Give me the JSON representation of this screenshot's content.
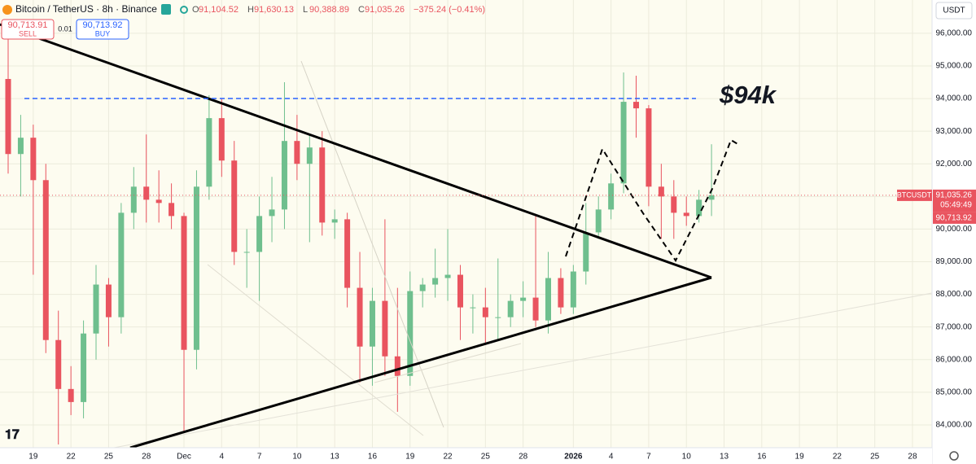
{
  "header": {
    "symbol": "Bitcoin / TetherUS · 8h · Binance",
    "ohlc": [
      {
        "label": "O",
        "value": "91,104.52"
      },
      {
        "label": "H",
        "value": "91,630.13"
      },
      {
        "label": "L",
        "value": "90,388.89"
      },
      {
        "label": "C",
        "value": "91,035.26"
      }
    ],
    "change": "−375.24 (−0.41%)"
  },
  "trade": {
    "sell_price": "90,713.91",
    "sell": "SELL",
    "spread": "0.01",
    "buy_price": "90,713.92",
    "buy": "BUY"
  },
  "axis_labels": {
    "currency": "USDT",
    "ticker": "BTCUSDT",
    "last_price": "91,035.26",
    "countdown": "05:49:49",
    "bid_price": "90,713.92"
  },
  "chart_data": {
    "type": "candlestick",
    "annotation": "$94k",
    "categories": [
      null,
      null,
      "19",
      null,
      null,
      "22",
      null,
      null,
      "25",
      null,
      null,
      "28",
      null,
      null,
      "Dec",
      null,
      null,
      "4",
      null,
      null,
      "7",
      null,
      null,
      "10",
      null,
      null,
      "13",
      null,
      null,
      "16",
      null,
      null,
      "19",
      null,
      null,
      "22",
      null,
      null,
      "25",
      null,
      null,
      "28",
      null,
      null,
      null,
      "2026",
      null,
      null,
      "4",
      null,
      null,
      "7",
      null,
      null,
      "10",
      null,
      null,
      "13",
      null,
      null,
      "16",
      null,
      null,
      "19",
      null,
      null,
      "22",
      null,
      null,
      "25",
      null,
      null,
      "28",
      null
    ],
    "open": [
      94600,
      92300,
      92800,
      91500,
      86600,
      85100,
      84700,
      86800,
      88300,
      87300,
      90500,
      91300,
      90900,
      90800,
      90400,
      86300,
      91300,
      93400,
      92100,
      89300,
      89300,
      90400,
      90600,
      92700,
      92000,
      92500,
      90200,
      90300,
      88200,
      86400,
      87800,
      86100,
      85500,
      88100,
      88300,
      88500,
      88600,
      87600,
      87600,
      87300,
      87300,
      87800,
      87900,
      87200,
      88500,
      87600,
      88700,
      89900,
      90600,
      91400,
      93900,
      93700,
      91300,
      91000,
      90500,
      90400,
      90900,
      null,
      null,
      null,
      null,
      null,
      null,
      null,
      null,
      null,
      null,
      null,
      null,
      null,
      null,
      null,
      null,
      null
    ],
    "high": [
      96000,
      93500,
      93200,
      92000,
      87500,
      85800,
      87200,
      88900,
      88500,
      90800,
      91900,
      92900,
      91800,
      91400,
      90500,
      91800,
      94100,
      94000,
      92700,
      90000,
      91000,
      91600,
      94500,
      93500,
      92900,
      93000,
      90600,
      90500,
      89300,
      88200,
      90300,
      88200,
      88700,
      88500,
      89400,
      90000,
      88900,
      88000,
      88200,
      89100,
      88000,
      88400,
      90400,
      89300,
      88800,
      88900,
      90800,
      91000,
      91700,
      94800,
      94700,
      93800,
      92000,
      91500,
      91000,
      91200,
      92600,
      null,
      null,
      null,
      null,
      null,
      null,
      null,
      null,
      null,
      null,
      null,
      null,
      null,
      null,
      null,
      null,
      null
    ],
    "low": [
      91700,
      91000,
      88600,
      86200,
      83400,
      84300,
      84200,
      86000,
      86400,
      86800,
      90000,
      90200,
      90200,
      90000,
      83800,
      85700,
      90900,
      91600,
      88900,
      88200,
      87800,
      89600,
      90000,
      91500,
      89600,
      89800,
      89700,
      87600,
      85300,
      85200,
      85500,
      84400,
      85200,
      87600,
      87900,
      87800,
      86600,
      86800,
      86500,
      86600,
      87000,
      87300,
      87000,
      86800,
      87400,
      87400,
      88300,
      89700,
      90300,
      91100,
      92800,
      90700,
      89700,
      89700,
      90100,
      90200,
      90400,
      null,
      null,
      null,
      null,
      null,
      null,
      null,
      null,
      null,
      null,
      null,
      null,
      null,
      null,
      null,
      null,
      null
    ],
    "close": [
      92300,
      92800,
      91500,
      86600,
      85100,
      84700,
      86800,
      88300,
      87300,
      90500,
      91300,
      90900,
      90800,
      90400,
      86300,
      91300,
      93400,
      92100,
      89300,
      89300,
      90400,
      90600,
      92700,
      92000,
      92500,
      90200,
      90300,
      88200,
      86400,
      87800,
      86100,
      85500,
      88100,
      88300,
      88500,
      88600,
      87600,
      87600,
      87300,
      87300,
      87800,
      87900,
      87200,
      88500,
      87600,
      88700,
      89900,
      90600,
      91400,
      93900,
      93700,
      91300,
      91000,
      90500,
      90400,
      90900,
      91035.26,
      null,
      null,
      null,
      null,
      null,
      null,
      null,
      null,
      null,
      null,
      null,
      null,
      null,
      null,
      null,
      null,
      null
    ],
    "up_color": "#6fbf8e",
    "down_color": "#e9545f",
    "ylim": [
      83300,
      97020
    ],
    "yticks": [
      {
        "value": 84000,
        "label": "84,000.00"
      },
      {
        "value": 85000,
        "label": "85,000.00"
      },
      {
        "value": 86000,
        "label": "86,000.00"
      },
      {
        "value": 87000,
        "label": "87,000.00"
      },
      {
        "value": 88000,
        "label": "88,000.00"
      },
      {
        "value": 89000,
        "label": "89,000.00"
      },
      {
        "value": 90000,
        "label": "90,000.00"
      },
      {
        "value": 91000,
        "label": "91,000.00"
      },
      {
        "value": 92000,
        "label": "92,000.00"
      },
      {
        "value": 93000,
        "label": "93,000.00"
      },
      {
        "value": 94000,
        "label": "94,000.00"
      },
      {
        "value": 95000,
        "label": "95,000.00"
      },
      {
        "value": 96000,
        "label": "96,000.00"
      }
    ],
    "grid": true
  }
}
